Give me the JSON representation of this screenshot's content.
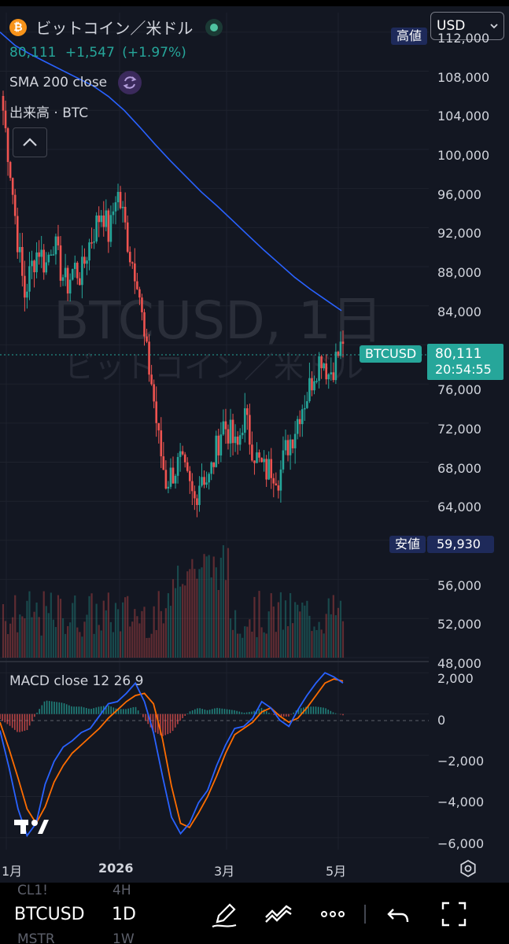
{
  "header": {
    "coin_glyph": "₿",
    "title": "ビットコイン／米ドル",
    "price": "80,111",
    "change": "+1,547",
    "change_pct": "(+1.97%)",
    "currency": "USD"
  },
  "indicators": {
    "sma": "SMA 200 close",
    "volume": "出来高 · BTC",
    "macd": "MACD close 12 26 9"
  },
  "watermark": {
    "symbol": "BTCUSD, 1日",
    "name": "ビットコイン／米ドル"
  },
  "labels": {
    "high_tag": "高値",
    "low_tag": "安値",
    "low_value": "59,930",
    "symbol_tag": "BTCUSD",
    "last_price": "80,111",
    "countdown": "20:54:55"
  },
  "price_axis": [
    "112,000",
    "108,000",
    "104,000",
    "100,000",
    "96,000",
    "92,000",
    "88,000",
    "84,000",
    "76,000",
    "72,000",
    "68,000",
    "64,000",
    "56,000",
    "52,000",
    "48,000"
  ],
  "macd_axis": [
    "2,000",
    "0",
    "−2,000",
    "−4,000",
    "−6,000"
  ],
  "time_axis": [
    "1月",
    "2026",
    "3月",
    "5月"
  ],
  "toolbar": {
    "symbol": "BTCUSD",
    "interval": "1D"
  },
  "ghost_watchlist": [
    "CL1!",
    "4H",
    "MSTR",
    "1W"
  ],
  "icons": [
    "collapse-chevron-icon",
    "refresh-icon",
    "chevron-down-icon",
    "settings-icon",
    "pen-icon",
    "draw-tools-icon",
    "more-icon",
    "undo-icon",
    "fullscreen-icon",
    "tradingview-logo-icon"
  ],
  "colors": {
    "up": "#26a69a",
    "down": "#ef5350",
    "sma": "#2962ff",
    "macd_line": "#2962ff",
    "signal_line": "#ff6d00",
    "tag_green": "#26a69a",
    "tag_blue": "#1e2a5a"
  },
  "chart_data": {
    "type": "candlestick",
    "y_range": [
      48000,
      114000
    ],
    "sma200": [
      112000,
      110600,
      109700,
      108900,
      108100,
      107300,
      106500,
      105400,
      104000,
      102300,
      100500,
      98800,
      97200,
      95600,
      94200,
      92700,
      91200,
      89700,
      88300,
      86900,
      85700,
      84600,
      83500
    ],
    "candles_close": [
      104000,
      98000,
      91000,
      85000,
      88000,
      90000,
      88000,
      91000,
      88000,
      86000,
      88000,
      87000,
      90000,
      92000,
      94000,
      91000,
      96000,
      93000,
      89000,
      87000,
      80000,
      76000,
      70000,
      66000,
      67000,
      68000,
      66000,
      64000,
      67000,
      66000,
      69000,
      72000,
      71000,
      69000,
      73000,
      70000,
      68000,
      67000,
      67500,
      66500,
      69500,
      71000,
      73500,
      75000,
      77500,
      79000,
      77000,
      78500,
      80111
    ],
    "macd": [
      -800,
      -2600,
      -4600,
      -5900,
      -5300,
      -3400,
      -2300,
      -1600,
      -1300,
      -900,
      -700,
      -100,
      500,
      600,
      1000,
      1500,
      600,
      -900,
      -3000,
      -5000,
      -5800,
      -5300,
      -4300,
      -3700,
      -2500,
      -1500,
      -700,
      -600,
      -200,
      600,
      300,
      -300,
      -600,
      200,
      900,
      1500,
      2000,
      1800,
      1500
    ],
    "signal": [
      -400,
      -1700,
      -3100,
      -4600,
      -5300,
      -4500,
      -3300,
      -2500,
      -1900,
      -1500,
      -1100,
      -700,
      -200,
      200,
      600,
      900,
      1000,
      500,
      -1200,
      -3500,
      -5300,
      -5500,
      -4800,
      -4000,
      -3000,
      -1900,
      -1000,
      -700,
      -400,
      100,
      300,
      -100,
      -400,
      -200,
      300,
      900,
      1500,
      1700,
      1600
    ],
    "macd_range": [
      -6500,
      2200
    ]
  }
}
